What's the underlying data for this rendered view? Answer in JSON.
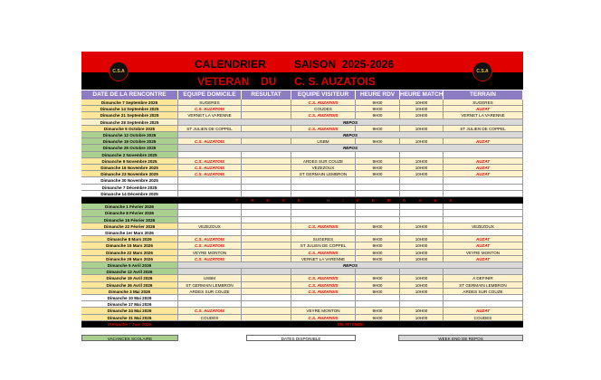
{
  "header": {
    "title_left": "CALENDRIER",
    "title_right": "SAISON  2025-2026",
    "subtitle_1": "VETERAN",
    "subtitle_2": "DU",
    "subtitle_3": "C. S. AUZATOIS",
    "logo_text": "C.S.A"
  },
  "table": {
    "columns": [
      "DATE DE LA RENCONTRE",
      "EQUIPE DOMICILE",
      "RESULTAT",
      "EQUIPE VISITEUR",
      "HEURE RDV",
      "HEURE MATCH",
      "TERRAIN"
    ],
    "red_color": "#e00000",
    "styles": {
      "match": {
        "fill": "#fff2cc",
        "date_fill": "#ffe699"
      },
      "repos": {
        "fill": "#d9d9d9",
        "date_fill": "#fff2cc"
      },
      "free": {
        "fill": "#ffffff",
        "date_fill": "#ffffff"
      },
      "vacation_match": {
        "fill": "#fff2cc",
        "date_fill": "#a9d08e"
      },
      "vacation_repos": {
        "fill": "#d9d9d9",
        "date_fill": "#a9d08e"
      },
      "vacation_free": {
        "fill": "#ffffff",
        "date_fill": "#a9d08e"
      },
      "break": {
        "fill": "#000000",
        "date_fill": "#000000"
      }
    },
    "rows": [
      {
        "date": "Dimanche 7 Septembre 2025",
        "style": "match",
        "cells": [
          "SUGERES",
          "C.S. AUZATOIS",
          "9H00",
          "10H00",
          "SUGERES"
        ],
        "red": [
          1
        ]
      },
      {
        "date": "Dimanche 14 Septembre 2025",
        "style": "match",
        "cells": [
          "C.S. AUZATOIS",
          "COUDES",
          "9H00",
          "10H00",
          "AUZAT"
        ],
        "red": [
          0,
          4
        ]
      },
      {
        "date": "Dimanche 21 Septembre 2025",
        "style": "match",
        "cells": [
          "VERNET LA VARENNE",
          "C.S. AUZATOIS",
          "9H00",
          "10H00",
          "VERNET LA VARENNE"
        ],
        "red": [
          1
        ]
      },
      {
        "date": "Dimanche 28 Septembre 2025",
        "style": "repos",
        "note": "REPOS"
      },
      {
        "date": "Dimanche 5 Octobre 2025",
        "style": "match",
        "cells": [
          "ST JULIEN DE COPPEL",
          "C.S. AUZATOIS",
          "9H00",
          "10H00",
          "ST JULIEN DE COPPEL"
        ],
        "red": [
          1
        ]
      },
      {
        "date": "Dimanche 12 Octobre 2025",
        "style": "vacation_repos",
        "note": "REPOS"
      },
      {
        "date": "Dimanche 19 Octobre 2025",
        "style": "vacation_match",
        "cells": [
          "C.S. AUZATOIS",
          "USBM",
          "9H00",
          "10H00",
          "AUZAT"
        ],
        "red": [
          0,
          4
        ]
      },
      {
        "date": "Dimanche 26 Octobre 2025",
        "style": "vacation_repos",
        "note": "REPOS"
      },
      {
        "date": "Dimanche 2 Novembre 2025",
        "style": "vacation_free"
      },
      {
        "date": "Dimanche 9 Novembre 2025",
        "style": "match",
        "cells": [
          "C.S. AUZATOIS",
          "ARDES SUR COUZE",
          "9H00",
          "10H00",
          "AUZAT"
        ],
        "red": [
          0,
          4
        ]
      },
      {
        "date": "Dimanche 16 Novembre 2025",
        "style": "match",
        "cells": [
          "C.S. AUZATOIS",
          "VEZEZOUX",
          "9H00",
          "10H00",
          "AUZAT"
        ],
        "red": [
          0,
          4
        ]
      },
      {
        "date": "Dimanche 23 Novembre 2025",
        "style": "match",
        "cells": [
          "C.S. AUZATOIS",
          "ST GERMAIN LEMBRON",
          "9H00",
          "10H00",
          "AUZAT"
        ],
        "red": [
          0,
          4
        ]
      },
      {
        "date": "Dimanche 30 Novembre 2025",
        "style": "free"
      },
      {
        "date": "Dimanche 7 Décembre 2025",
        "style": "free"
      },
      {
        "date": "Dimanche 14 Décembre 2025",
        "style": "free"
      },
      {
        "style": "break",
        "note": "TREVE HIVERNALE"
      },
      {
        "date": "Dimanche 1 Février 2026",
        "style": "vacation_free"
      },
      {
        "date": "Dimanche 8 Février 2026",
        "style": "vacation_free"
      },
      {
        "date": "Dimanche 15 Février 2026",
        "style": "vacation_free"
      },
      {
        "date": "Dimanche 22 Février 2026",
        "style": "match",
        "cells": [
          "VEZEZOUX",
          "C.S. AUZATOIS",
          "9H00",
          "10H00",
          "VEZEZOUX"
        ],
        "red": [
          1
        ]
      },
      {
        "date": "Dimanche 1er Mars 2026",
        "style": "free"
      },
      {
        "date": "Dimanche 8 Mars 2026",
        "style": "match",
        "cells": [
          "C.S. AUZATOIS",
          "SUGERES",
          "9H00",
          "10H00",
          "AUZAT"
        ],
        "red": [
          0,
          4
        ]
      },
      {
        "date": "Dimanche 15 Mars 2026",
        "style": "match",
        "cells": [
          "C.S. AUZATOIS",
          "ST JULIEN DE COPPEL",
          "9H00",
          "10H00",
          "AUZAT"
        ],
        "red": [
          0,
          4
        ]
      },
      {
        "date": "Dimanche 22 Mars 2026",
        "style": "match",
        "cells": [
          "VEYRE MONTON",
          "C.S. AUZATOIS",
          "9H00",
          "10H00",
          "VEYRE MONTON"
        ],
        "red": [
          1
        ]
      },
      {
        "date": "Dimanche 29 Mars 2026",
        "style": "match",
        "cells": [
          "C.S. AUZATOIS",
          "VERNET LA VARENNE",
          "9H00",
          "10H00",
          "AUZAT"
        ],
        "red": [
          0,
          4
        ]
      },
      {
        "date": "Dimanche 5 Avril 2026",
        "style": "vacation_repos",
        "note": "REPOS"
      },
      {
        "date": "Dimanche 12 Avril 2026",
        "style": "vacation_repos"
      },
      {
        "date": "Dimanche 19 Avril 2026",
        "style": "match",
        "cells": [
          "USBM",
          "C.S. AUZATOIS",
          "9H00",
          "10H00",
          "A DEFINIR"
        ],
        "red": [
          1
        ]
      },
      {
        "date": "Dimanche 26 Avril 2026",
        "style": "match",
        "cells": [
          "ST GERMAIN LEMBRON",
          "C.S. AUZATOIS",
          "9H00",
          "10H00",
          "ST GERMAIN LEMBRON"
        ],
        "red": [
          1
        ]
      },
      {
        "date": "Dimanche 3 Mai 2026",
        "style": "match",
        "cells": [
          "ARDES SUR COUZE",
          "C.S. AUZATOIS",
          "9H00",
          "10H00",
          "ARDES SUR COUZE"
        ],
        "red": [
          1
        ]
      },
      {
        "date": "Dimanche 10 Mai 2026",
        "style": "free"
      },
      {
        "date": "Dimanche 17 Mai 2026",
        "style": "free"
      },
      {
        "date": "Dimanche 24 Mai 2026",
        "style": "match",
        "cells": [
          "C.S. AUZATOIS",
          "VEYRE MONTON",
          "9H00",
          "10H00",
          "AUZAT"
        ],
        "red": [
          0,
          4
        ]
      },
      {
        "date": "Dimanche 31 Mai 2026",
        "style": "match",
        "cells": [
          "COUDES",
          "C.S. AUZATOIS",
          "9H00",
          "10H00",
          "COUDES"
        ],
        "red": [
          1
        ]
      },
      {
        "date": "Dimanche 7 Juin 2026",
        "style": "break",
        "note": "EN ATTENTE"
      }
    ]
  },
  "legend": [
    {
      "label": "VACANCES SCOLAIRE",
      "color": "#a9d08e"
    },
    {
      "label": "DATES DISPONIBLE",
      "color": "#ffffff"
    },
    {
      "label": "WEEK END DE REPOS",
      "color": "#d9d9d9"
    }
  ]
}
